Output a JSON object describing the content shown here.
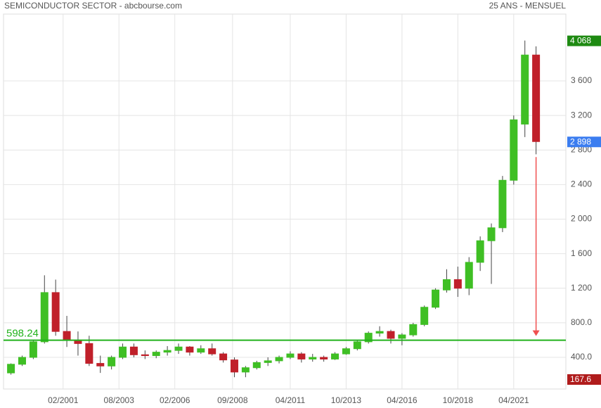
{
  "chart_data": {
    "type": "candlestick",
    "title": "SEMICONDUCTOR SECTOR - abcbourse.com",
    "subtitle": "25 ANS - MENSUEL",
    "x": [
      "07/1998",
      "01/1999",
      "07/1999",
      "01/2000",
      "07/2000",
      "01/2001",
      "07/2001",
      "01/2002",
      "07/2002",
      "01/2003",
      "07/2003",
      "01/2004",
      "07/2004",
      "01/2005",
      "07/2005",
      "01/2006",
      "07/2006",
      "01/2007",
      "07/2007",
      "01/2008",
      "07/2008",
      "01/2009",
      "07/2009",
      "01/2010",
      "07/2010",
      "01/2011",
      "07/2011",
      "01/2012",
      "07/2012",
      "01/2013",
      "07/2013",
      "01/2014",
      "07/2014",
      "01/2015",
      "07/2015",
      "01/2016",
      "07/2016",
      "01/2017",
      "07/2017",
      "01/2018",
      "07/2018",
      "01/2019",
      "07/2019",
      "01/2020",
      "07/2020",
      "01/2021",
      "07/2021",
      "01/2022"
    ],
    "open": [
      220,
      320,
      400,
      580,
      1150,
      700,
      600,
      560,
      330,
      300,
      400,
      520,
      430,
      420,
      460,
      480,
      520,
      460,
      500,
      440,
      370,
      230,
      280,
      340,
      360,
      400,
      440,
      380,
      400,
      380,
      440,
      500,
      580,
      680,
      700,
      620,
      660,
      780,
      980,
      1180,
      1300,
      1200,
      1500,
      1750,
      1900,
      2450,
      3100,
      3900
    ],
    "high": [
      330,
      420,
      600,
      1350,
      1300,
      880,
      700,
      650,
      420,
      420,
      560,
      560,
      480,
      480,
      530,
      560,
      530,
      540,
      560,
      460,
      400,
      300,
      360,
      400,
      420,
      470,
      460,
      440,
      420,
      460,
      520,
      600,
      700,
      760,
      720,
      680,
      800,
      1000,
      1200,
      1420,
      1450,
      1560,
      1800,
      1950,
      2500,
      3200,
      4068,
      4000
    ],
    "low": [
      200,
      300,
      380,
      560,
      650,
      520,
      420,
      300,
      220,
      260,
      380,
      400,
      380,
      390,
      420,
      440,
      420,
      440,
      420,
      340,
      170,
      170,
      260,
      300,
      330,
      380,
      340,
      350,
      350,
      370,
      430,
      480,
      560,
      640,
      560,
      540,
      640,
      760,
      960,
      1150,
      1100,
      1120,
      1400,
      1250,
      1850,
      2400,
      2950,
      2750
    ],
    "close": [
      320,
      400,
      580,
      1150,
      700,
      600,
      560,
      330,
      300,
      400,
      520,
      430,
      420,
      460,
      480,
      520,
      460,
      500,
      440,
      370,
      230,
      280,
      340,
      360,
      400,
      440,
      380,
      400,
      380,
      440,
      500,
      580,
      680,
      700,
      620,
      660,
      780,
      980,
      1180,
      1300,
      1200,
      1500,
      1750,
      1900,
      2450,
      3150,
      3900,
      2898
    ],
    "up_color": "#3fbf24",
    "down_color": "#c0202a",
    "xlim": [
      "06/1998",
      "08/2023"
    ],
    "xticks": [
      "02/2001",
      "08/2003",
      "02/2006",
      "09/2008",
      "04/2011",
      "10/2013",
      "04/2016",
      "10/2018",
      "04/2021"
    ],
    "ylim": [
      33.5,
      4374
    ],
    "yticks": [
      {
        "value": 400,
        "label": "400.0"
      },
      {
        "value": 800,
        "label": "800.0"
      },
      {
        "value": 1200,
        "label": "1 200"
      },
      {
        "value": 1600,
        "label": "1 600"
      },
      {
        "value": 2000,
        "label": "2 000"
      },
      {
        "value": 2400,
        "label": "2 400"
      },
      {
        "value": 2800,
        "label": "2 800"
      },
      {
        "value": 3200,
        "label": "3 200"
      },
      {
        "value": 3600,
        "label": "3 600"
      }
    ],
    "grid": true,
    "support_level": 598.24,
    "support_color": "#22b21c",
    "high_marker": {
      "value": 4068,
      "label": "4 068",
      "color": "#1e8a12"
    },
    "last_marker": {
      "value": 2898,
      "label": "2 898",
      "color": "#3b7df0"
    },
    "low_marker": {
      "value": 167.6,
      "label": "167.6",
      "color": "#b01c1c"
    },
    "arrow_color": "#f05050"
  }
}
